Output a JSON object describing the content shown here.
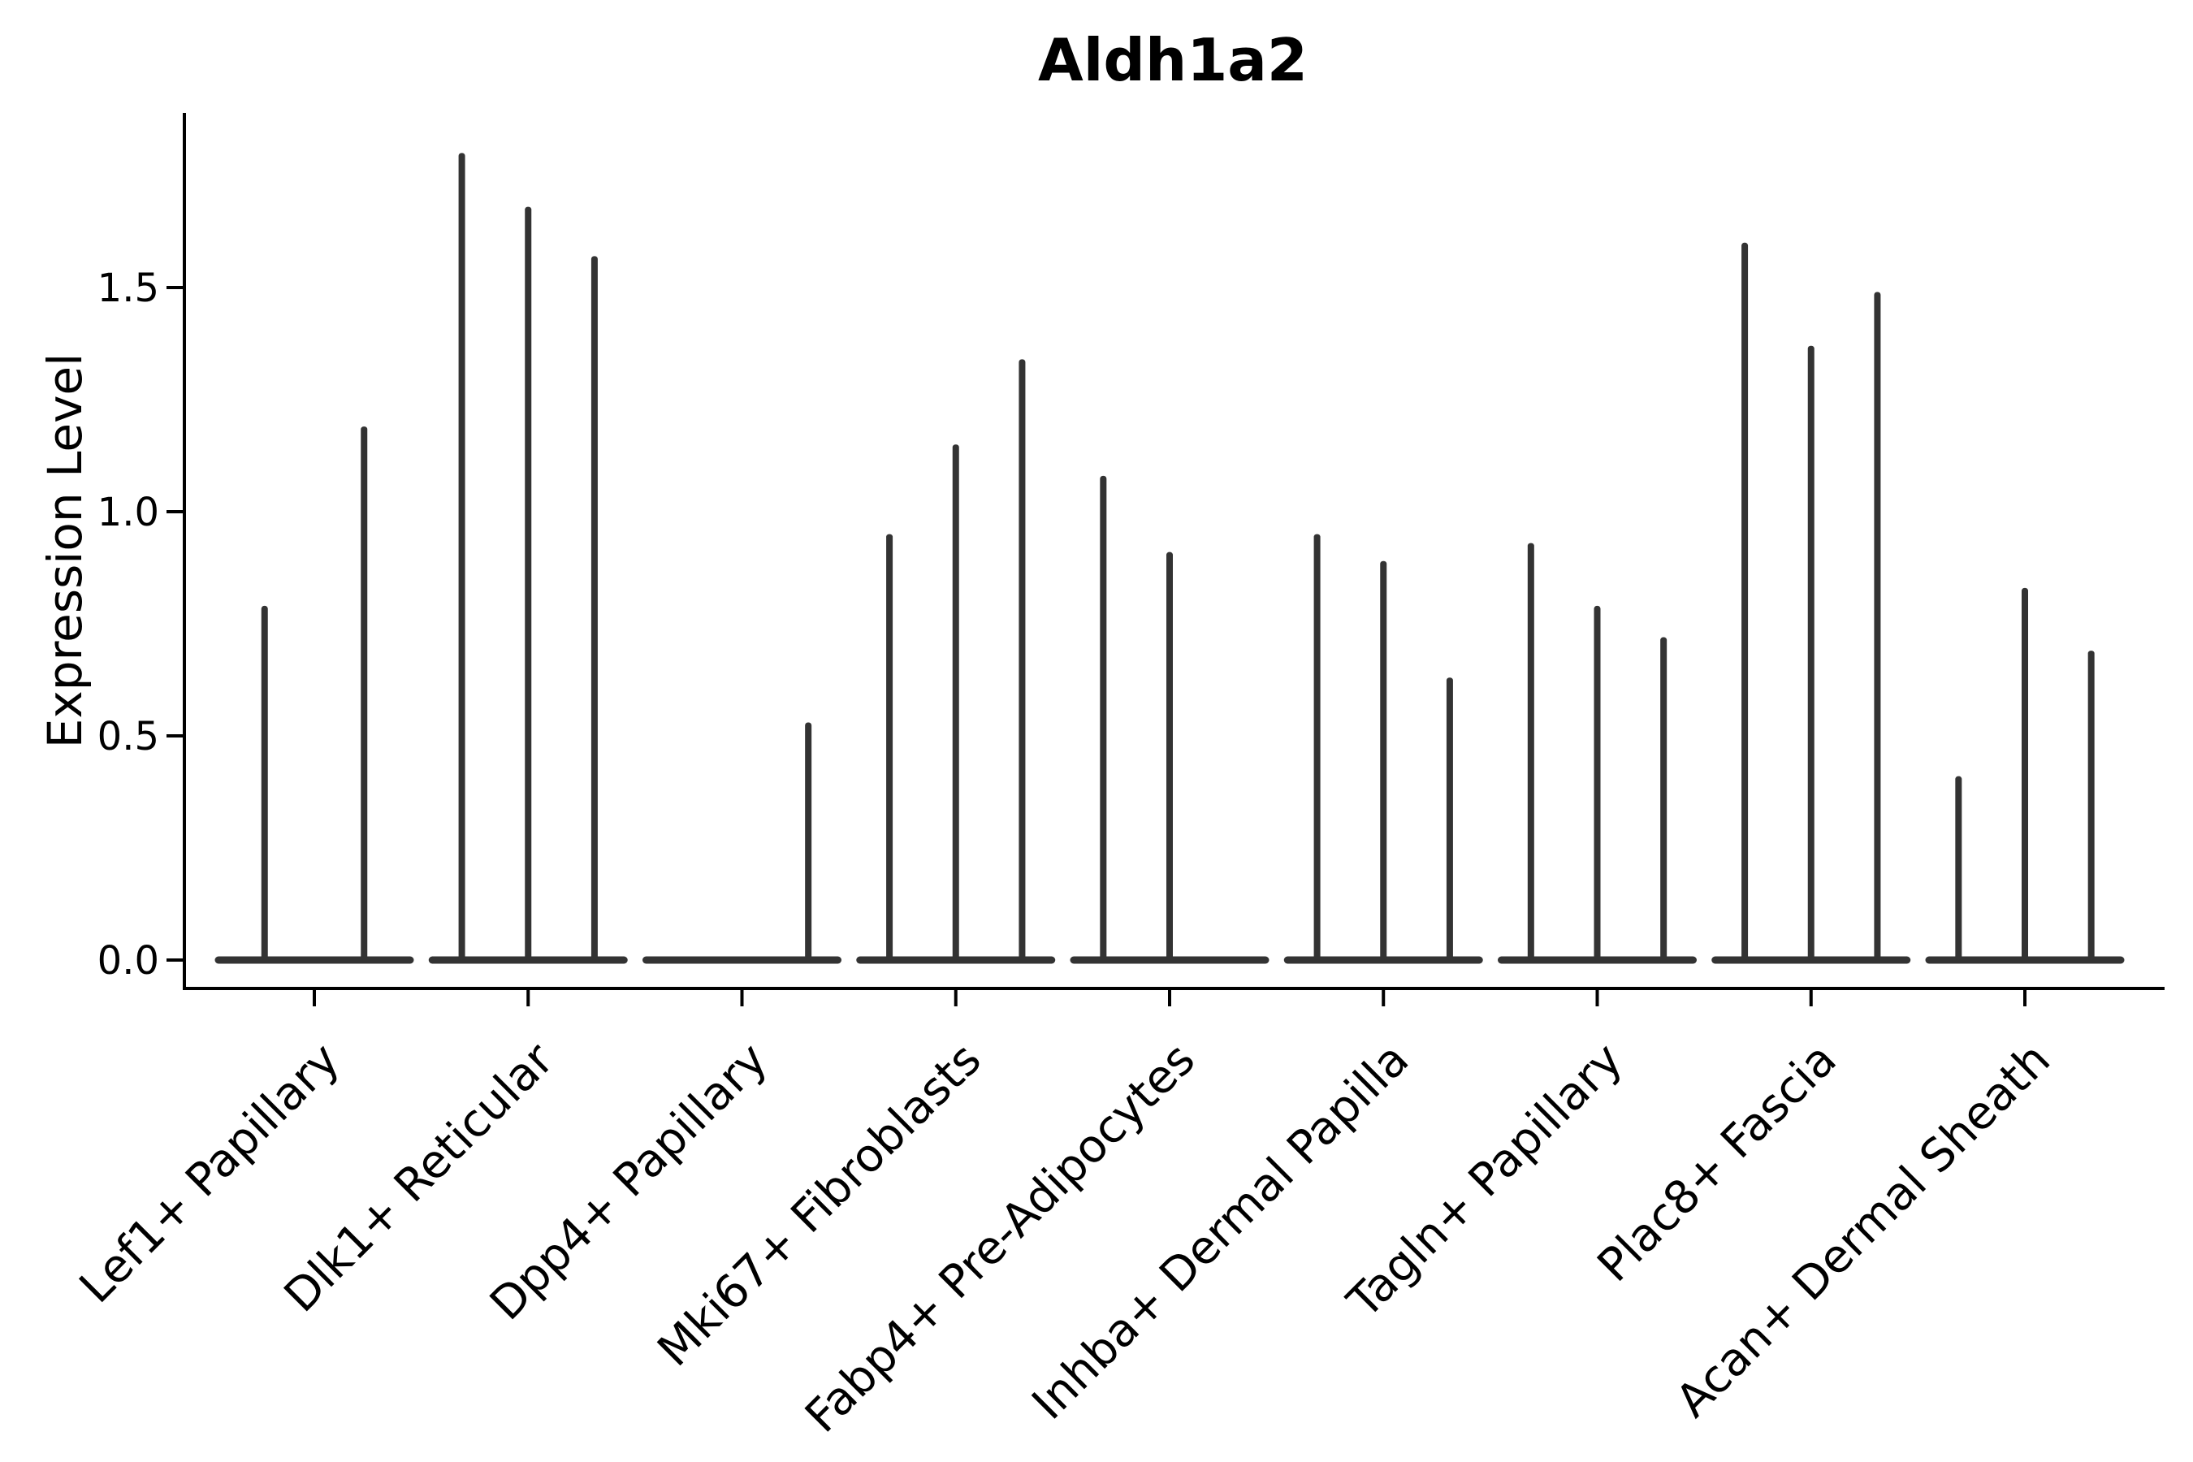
{
  "chart_data": {
    "type": "violin",
    "title": "Aldh1a2",
    "xlabel": "",
    "ylabel": "Expression Level",
    "ylim": [
      0,
      1.89
    ],
    "grid": false,
    "legend": null,
    "ytick_labels": [
      "0.0",
      "0.5",
      "1.0",
      "1.5"
    ],
    "ytick_values": [
      0.0,
      0.5,
      1.0,
      1.5
    ],
    "violin_color": "#333333",
    "axis_color": "#000000",
    "description": "Sparse expression violin plot; each category shows flat zero-density bases with thin spikes reaching the maximum expression value of each sub-violin (0 = no spike, flat violin).",
    "categories": [
      {
        "label": "Lef1+ Papillary",
        "violin_maxima": [
          0.79,
          1.19
        ]
      },
      {
        "label": "Dlk1+ Reticular",
        "violin_maxima": [
          1.8,
          1.68,
          1.57
        ]
      },
      {
        "label": "Dpp4+ Papillary",
        "violin_maxima": [
          0,
          0,
          0.53
        ]
      },
      {
        "label": "Mki67+ Fibroblasts",
        "violin_maxima": [
          0.95,
          1.15,
          1.34
        ]
      },
      {
        "label": "Fabp4+ Pre-Adipocytes",
        "violin_maxima": [
          1.08,
          0.91,
          0
        ]
      },
      {
        "label": "Inhba+ Dermal Papilla",
        "violin_maxima": [
          0.95,
          0.89,
          0.63
        ]
      },
      {
        "label": "Tagln+ Papillary",
        "violin_maxima": [
          0.93,
          0.79,
          0.72
        ]
      },
      {
        "label": "Plac8+ Fascia",
        "violin_maxima": [
          1.6,
          1.37,
          1.49
        ]
      },
      {
        "label": "Acan+ Dermal Sheath",
        "violin_maxima": [
          0.41,
          0.83,
          0.69
        ]
      }
    ]
  }
}
